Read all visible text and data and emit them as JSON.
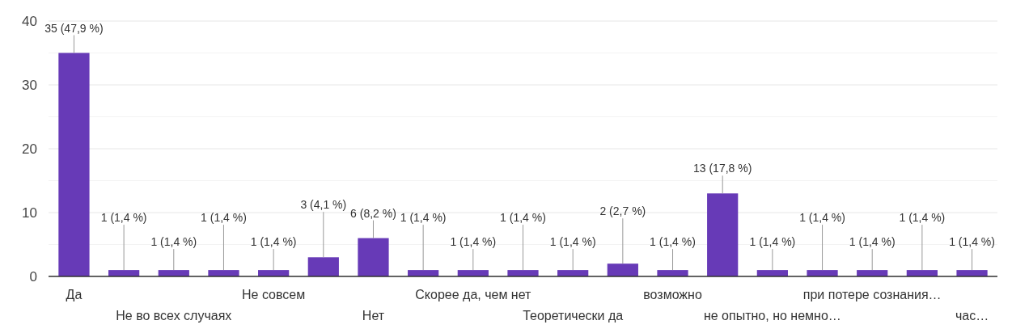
{
  "chart_data": {
    "type": "bar",
    "categories": [
      "Да",
      null,
      "Не во всех случаях",
      null,
      "Не совсем",
      null,
      "Нет",
      null,
      "Скорее да, чем нет",
      null,
      "Теоретически да",
      null,
      "возможно",
      null,
      "не опытно, но немно…",
      null,
      "при потере сознания…",
      null,
      "час…"
    ],
    "values": [
      35,
      1,
      1,
      1,
      1,
      3,
      6,
      1,
      1,
      1,
      1,
      2,
      1,
      13,
      1,
      1,
      1,
      1,
      1
    ],
    "color": "#673ab7",
    "value_labels": [
      "35 (47,9 %)",
      "1 (1,4 %)",
      "1 (1,4 %)",
      "1 (1,4 %)",
      "1 (1,4 %)",
      "3 (4,1 %)",
      "6 (8,2 %)",
      "1 (1,4 %)",
      "1 (1,4 %)",
      "1 (1,4 %)",
      "1 (1,4 %)",
      "2 (2,7 %)",
      "1 (1,4 %)",
      "13 (17,8 %)",
      "1 (1,4 %)",
      "1 (1,4 %)",
      "1 (1,4 %)",
      "1 (1,4 %)",
      "1 (1,4 %)"
    ],
    "ylim": [
      0,
      40
    ],
    "yticks": [
      0,
      {
        "value": 5,
        "label": null
      },
      10,
      {
        "value": 15,
        "label": null
      },
      20,
      {
        "value": 25,
        "label": null
      },
      30,
      {
        "value": 35,
        "label": null
      },
      40
    ],
    "grid": true
  }
}
